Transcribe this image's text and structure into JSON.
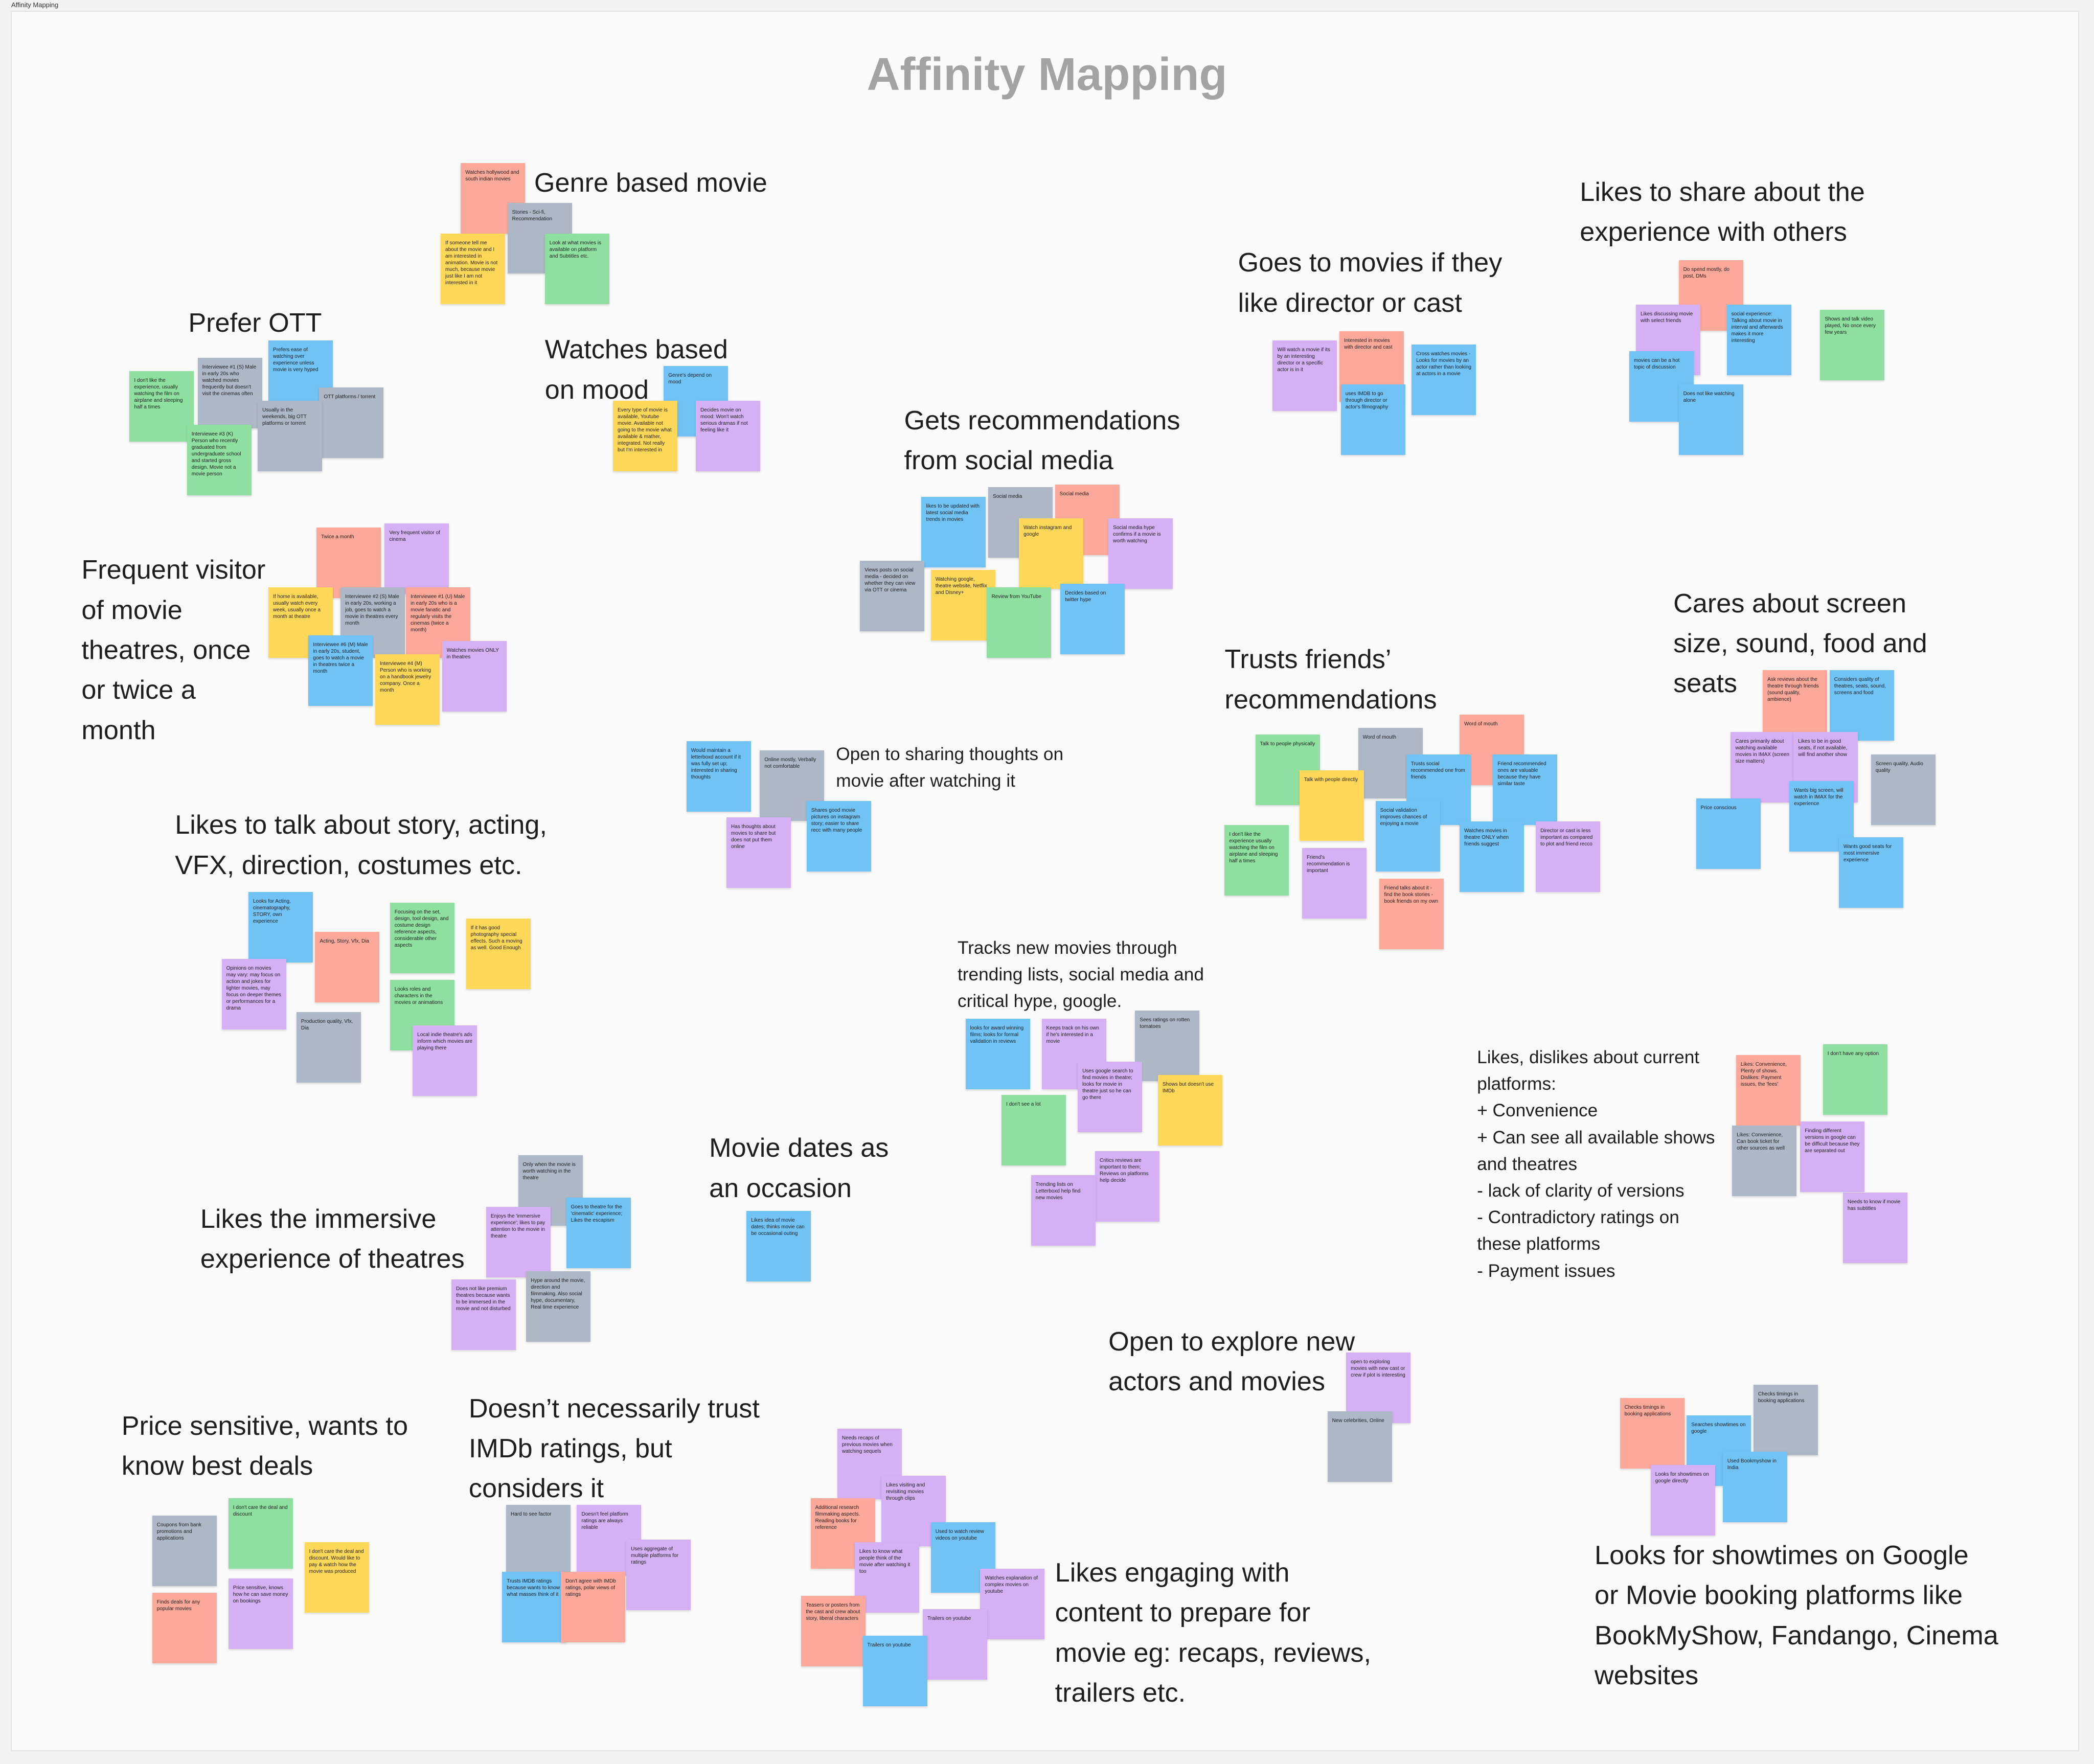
{
  "frame_label": "Affinity Mapping",
  "title": "Affinity Mapping",
  "clusters": [
    {
      "heading": [
        "Genre based movie"
      ],
      "notes": [
        {
          "text": "Watches hollywood and south indian movies",
          "color": "#fca99b"
        },
        {
          "text": "Stories - Sci-fi, Recommendation",
          "color": "#aeb7c6"
        },
        {
          "text": "If someone tell me about the movie and I am interested in animation. Movie is not much, because movie just like I am not interested in it",
          "color": "#ffd859"
        },
        {
          "text": "Look at what movies is available on platform and Subtitles etc.",
          "color": "#8fe0a0"
        }
      ]
    },
    {
      "heading": [
        "Prefer OTT"
      ],
      "notes": [
        {
          "text": "Interviewee #1 (S) Male in early 20s who watched movies frequently but doesn't visit the cinemas often",
          "color": "#aeb7c6"
        },
        {
          "text": "Prefers ease of watching over experience unless movie is very hyped",
          "color": "#71c3f6"
        },
        {
          "text": "I don't like the experience, usually watching the film on airplane and sleeping half a times",
          "color": "#8fe0a0"
        },
        {
          "text": "OTT platforms / torrent",
          "color": "#aeb7c6"
        },
        {
          "text": "Usually in the weekends, big OTT platforms or torrent",
          "color": "#aeb7c6"
        },
        {
          "text": "Interviewee #3 (K) Person who recently graduated from undergraduate school and started gross design. Movie not a movie person",
          "color": "#8fe0a0"
        }
      ]
    },
    {
      "heading": [
        "Watches based",
        "on mood"
      ],
      "notes": [
        {
          "text": "Genre's depend on mood",
          "color": "#71c3f6"
        },
        {
          "text": "Every type of movie is available, Youtube movie. Available not going to the movie what available & mather, integrated. Not really but I'm interested in",
          "color": "#ffd859"
        },
        {
          "text": "Decides movie on mood: Won't watch serious dramas if not feeling like it",
          "color": "#d6b0f5"
        }
      ]
    },
    {
      "heading": [
        "Frequent visitor",
        "of movie",
        "theatres, once",
        "or twice a",
        "month"
      ],
      "notes": [
        {
          "text": "Twice a month",
          "color": "#fca99b"
        },
        {
          "text": "Very frequent visitor of cinema",
          "color": "#d6b0f5"
        },
        {
          "text": "If home is available, usually watch every week, usually once a month at theatre",
          "color": "#ffd859"
        },
        {
          "text": "Interviewee #2 (S) Male in early 20s, working a job, goes to watch a movie in theatres every month",
          "color": "#aeb7c6"
        },
        {
          "text": "Interviewee #1 (U) Male in early 20s who is a movie fanatic and regularly visits the cinemas (twice a month)",
          "color": "#fca99b"
        },
        {
          "text": "Interviewee #6 (M) Male in early 20s, student, goes to watch a movie in theatres twice a month",
          "color": "#71c3f6"
        },
        {
          "text": "Interviewee #4 (M) Person who is working on a handbook jewelry company. Once a month",
          "color": "#ffd859"
        },
        {
          "text": "Watches movies ONLY in theatres",
          "color": "#d6b0f5"
        }
      ]
    },
    {
      "heading": [
        "Gets recommendations",
        "from social media"
      ],
      "notes": [
        {
          "text": "likes to be updated with latest social media trends in movies",
          "color": "#71c3f6"
        },
        {
          "text": "Social media",
          "color": "#aeb7c6"
        },
        {
          "text": "Social media",
          "color": "#fca99b"
        },
        {
          "text": "Watch instagram and google",
          "color": "#ffd859"
        },
        {
          "text": "Social media hype confirms if a movie is worth watching",
          "color": "#d6b0f5"
        },
        {
          "text": "Views posts on social media - decided on whether they can view via OTT or cinema",
          "color": "#aeb7c6"
        },
        {
          "text": "Watching google, theatre website, Netflix and Disney+",
          "color": "#ffd859"
        },
        {
          "text": "Review from YouTube",
          "color": "#8fe0a0"
        },
        {
          "text": "Decides based on twitter hype",
          "color": "#71c3f6"
        }
      ]
    },
    {
      "heading": [
        "Goes to movies if they",
        "like director or cast"
      ],
      "notes": [
        {
          "text": "Will watch a movie if its by an interesting director or a specific actor is in it",
          "color": "#d6b0f5"
        },
        {
          "text": "Interested in movies with director and cast",
          "color": "#fca99b"
        },
        {
          "text": "Cross watches movies - Looks for movies by an actor rather than looking at actors in a movie",
          "color": "#71c3f6"
        },
        {
          "text": "uses IMDB to go through director or actor's filmography",
          "color": "#71c3f6"
        }
      ]
    },
    {
      "heading": [
        "Likes to share about the",
        "experience with others"
      ],
      "notes": [
        {
          "text": "Do spend mostly, do post, DMs",
          "color": "#fca99b"
        },
        {
          "text": "Likes discussing movie with select friends",
          "color": "#d6b0f5"
        },
        {
          "text": "social experience: Talking about movie in interval and afterwards makes it more interesting",
          "color": "#71c3f6"
        },
        {
          "text": "movies can be a hot topic of discussion",
          "color": "#71c3f6"
        },
        {
          "text": "Does not like watching alone",
          "color": "#71c3f6"
        },
        {
          "text": "Shows and talk video played, No once every few years",
          "color": "#8fe0a0"
        }
      ]
    },
    {
      "heading": [
        "Cares about screen",
        "size, sound, food and",
        "seats"
      ],
      "notes": [
        {
          "text": "Ask reviews about the theatre through friends (sound quality, ambience)",
          "color": "#fca99b"
        },
        {
          "text": "Considers quality of theatres, seats, sound, screens and food",
          "color": "#71c3f6"
        },
        {
          "text": "Cares primarily about watching available movies in IMAX (screen size matters)",
          "color": "#d6b0f5"
        },
        {
          "text": "Likes to be in good seats, if not available, will find another show",
          "color": "#d6b0f5"
        },
        {
          "text": "Screen quality, Audio quality",
          "color": "#aeb7c6"
        },
        {
          "text": "Wants big screen, will watch in IMAX for the experience",
          "color": "#71c3f6"
        },
        {
          "text": "Price conscious",
          "color": "#71c3f6"
        },
        {
          "text": "Wants good seats for most immersive experience",
          "color": "#71c3f6"
        }
      ]
    },
    {
      "heading": [
        "Trusts friends’",
        "recommendations"
      ],
      "notes": [
        {
          "text": "Talk to people physically",
          "color": "#8fe0a0"
        },
        {
          "text": "Word of mouth",
          "color": "#aeb7c6"
        },
        {
          "text": "Word of mouth",
          "color": "#fca99b"
        },
        {
          "text": "Talk with people directly",
          "color": "#ffd859"
        },
        {
          "text": "Trusts social recommended one from friends",
          "color": "#71c3f6"
        },
        {
          "text": "Friend recommended ones are valuable because they have similar taste",
          "color": "#71c3f6"
        },
        {
          "text": "I don't like the experience usually watching the film on airplane and sleeping half a times",
          "color": "#8fe0a0"
        },
        {
          "text": "Social validation improves chances of enjoying a movie",
          "color": "#71c3f6"
        },
        {
          "text": "Watches movies in theatre ONLY when friends suggest",
          "color": "#71c3f6"
        },
        {
          "text": "Director or cast is less important as compared to plot and friend recco",
          "color": "#d6b0f5"
        },
        {
          "text": "Friend's recommendation is important",
          "color": "#d6b0f5"
        },
        {
          "text": "Friend talks about it - find the book stories - book friends on my own",
          "color": "#fca99b"
        }
      ]
    },
    {
      "heading": [
        "Open to sharing thoughts on",
        "movie after watching it"
      ],
      "notes": [
        {
          "text": "Would maintain a letterboxd account if it was fully set up; interested in sharing thoughts",
          "color": "#71c3f6"
        },
        {
          "text": "Online mostly, Verbally not comfortable",
          "color": "#aeb7c6"
        },
        {
          "text": "Has thoughts about movies to share but does not put them online",
          "color": "#d6b0f5"
        },
        {
          "text": "Shares good movie pictures on instagram story; easier to share recc with many people",
          "color": "#71c3f6"
        }
      ]
    },
    {
      "heading": [
        "Likes to talk about story, acting,",
        "VFX, direction, costumes etc."
      ],
      "notes": [
        {
          "text": "Looks for Acting, cinematography, STORY, own experience",
          "color": "#71c3f6"
        },
        {
          "text": "Acting, Story, Vfx, Dia",
          "color": "#fca99b"
        },
        {
          "text": "Focusing on the set, design, tool design, and costume design reference aspects, considerable other aspects",
          "color": "#8fe0a0"
        },
        {
          "text": "If it has good photography special effects. Such a moving as well. Good Enough",
          "color": "#ffd859"
        },
        {
          "text": "Opinions on movies may vary: may focus on action and jokes for lighter movies, may focus on deeper themes or performances for a drama",
          "color": "#d6b0f5"
        },
        {
          "text": "Looks roles and characters in the movies or animations",
          "color": "#8fe0a0"
        },
        {
          "text": "Production quality, Vfx, Dia",
          "color": "#aeb7c6"
        },
        {
          "text": "Local indie theatre's ads inform which movies are playing there",
          "color": "#d6b0f5"
        }
      ]
    },
    {
      "heading": [
        "Tracks new movies through",
        "trending lists, social media and",
        "critical hype, google."
      ],
      "notes": [
        {
          "text": "looks for award winning films; looks for formal validation in reviews",
          "color": "#71c3f6"
        },
        {
          "text": "Keeps track on his own if he's interested in a movie",
          "color": "#d6b0f5"
        },
        {
          "text": "Sees ratings on rotten tomatoes",
          "color": "#aeb7c6"
        },
        {
          "text": "Uses google search to find movies in theatre; looks for movie in theatre just so he can go there",
          "color": "#d6b0f5"
        },
        {
          "text": "I don't see a lot",
          "color": "#8fe0a0"
        },
        {
          "text": "Shows but doesn't use IMDb",
          "color": "#ffd859"
        },
        {
          "text": "Critics reviews are important to them; Reviews on platforms help decide",
          "color": "#d6b0f5"
        },
        {
          "text": "Trending lists on Letterboxd help find new movies",
          "color": "#d6b0f5"
        }
      ]
    },
    {
      "heading": [
        "Likes, dislikes about current",
        "platforms:",
        "+ Convenience",
        "+ Can see all available shows",
        "and theatres",
        "- lack of clarity of versions",
        "- Contradictory ratings on",
        "these platforms",
        "- Payment issues"
      ],
      "notes": [
        {
          "text": "I don't have any option",
          "color": "#8fe0a0"
        },
        {
          "text": "Likes: Convenience, Plenty of shows. Dislikes: Payment issues, the 'fees'",
          "color": "#fca99b"
        },
        {
          "text": "Likes: Convenience, Can book ticket for other sources as well",
          "color": "#aeb7c6"
        },
        {
          "text": "Finding different versions in google can be difficult because they are separated out",
          "color": "#d6b0f5"
        },
        {
          "text": "Needs to know if movie has subtitles",
          "color": "#d6b0f5"
        }
      ]
    },
    {
      "heading": [
        "Movie dates as",
        "an occasion"
      ],
      "notes": [
        {
          "text": "Likes idea of movie dates; thinks movie can be occasional outing",
          "color": "#71c3f6"
        }
      ]
    },
    {
      "heading": [
        "Likes the immersive",
        "experience of theatres"
      ],
      "notes": [
        {
          "text": "Only when the movie is worth watching in the theatre",
          "color": "#aeb7c6"
        },
        {
          "text": "Enjoys the 'immersive experience'; likes to pay attention to the movie in theatre",
          "color": "#d6b0f5"
        },
        {
          "text": "Goes to theatre for the 'cinematic' experience; Likes the escapism",
          "color": "#71c3f6"
        },
        {
          "text": "Does not like premium theatres because wants to be immersed in the movie and not disturbed",
          "color": "#d6b0f5"
        },
        {
          "text": "Hype around the movie, direction and filmmaking. Also social hype, documentary, Real time experience",
          "color": "#aeb7c6"
        }
      ]
    },
    {
      "heading": [
        "Open to explore new",
        "actors and movies"
      ],
      "notes": [
        {
          "text": "open to exploring movies with new cast or crew if plot is interesting",
          "color": "#d6b0f5"
        },
        {
          "text": "New celebrities, Online",
          "color": "#aeb7c6"
        }
      ]
    },
    {
      "heading": [
        "Price sensitive, wants to",
        "know best deals"
      ],
      "notes": [
        {
          "text": "Coupons from bank promotions and applications",
          "color": "#aeb7c6"
        },
        {
          "text": "I don't care the deal and discount",
          "color": "#8fe0a0"
        },
        {
          "text": "I don't care the deal and discount. Would like to pay & watch how the movie was produced",
          "color": "#ffd859"
        },
        {
          "text": "Price sensitive, knows how he can save money on bookings",
          "color": "#d6b0f5"
        },
        {
          "text": "Finds deals for any popular movies",
          "color": "#fca99b"
        }
      ]
    },
    {
      "heading": [
        "Doesn’t necessarily trust",
        "IMDb ratings, but",
        "considers it"
      ],
      "notes": [
        {
          "text": "Hard to see factor",
          "color": "#aeb7c6"
        },
        {
          "text": "Doesn't feel platform ratings are always reliable",
          "color": "#d6b0f5"
        },
        {
          "text": "Uses aggregate of multiple platforms for ratings",
          "color": "#d6b0f5"
        },
        {
          "text": "Trusts IMDB ratings because wants to know what masses think of it",
          "color": "#71c3f6"
        },
        {
          "text": "Don't agree with IMDb ratings, polar views of ratings",
          "color": "#fca99b"
        }
      ]
    },
    {
      "heading": [
        "Likes engaging with",
        "content to prepare for",
        "movie eg: recaps, reviews,",
        "trailers etc."
      ],
      "notes": [
        {
          "text": "Needs recaps of previous movies when watching sequels",
          "color": "#d6b0f5"
        },
        {
          "text": "Likes visiting and revisiting movies through clips",
          "color": "#d6b0f5"
        },
        {
          "text": "Additional research filmmaking aspects. Reading books for reference",
          "color": "#fca99b"
        },
        {
          "text": "Used to watch review videos on youtube",
          "color": "#71c3f6"
        },
        {
          "text": "Likes to know what people think of the movie after watching it too",
          "color": "#d6b0f5"
        },
        {
          "text": "Watches explanation of complex movies on youtube",
          "color": "#d6b0f5"
        },
        {
          "text": "Teasers or posters from the cast and crew about story, liberal characters",
          "color": "#fca99b"
        },
        {
          "text": "Trailers on youtube",
          "color": "#d6b0f5"
        },
        {
          "text": "Trailers on youtube",
          "color": "#71c3f6"
        }
      ]
    },
    {
      "heading": [
        "Looks for showtimes on Google",
        "or Movie booking platforms like",
        "BookMyShow, Fandango, Cinema",
        "websites"
      ],
      "notes": [
        {
          "text": "Checks timings in booking applications",
          "color": "#fca99b"
        },
        {
          "text": "Checks timings in booking applications",
          "color": "#aeb7c6"
        },
        {
          "text": "Searches showtimes on google",
          "color": "#71c3f6"
        },
        {
          "text": "Looks for showtimes on google directly",
          "color": "#d6b0f5"
        },
        {
          "text": "Used Bookmyshow in India",
          "color": "#71c3f6"
        }
      ]
    }
  ]
}
